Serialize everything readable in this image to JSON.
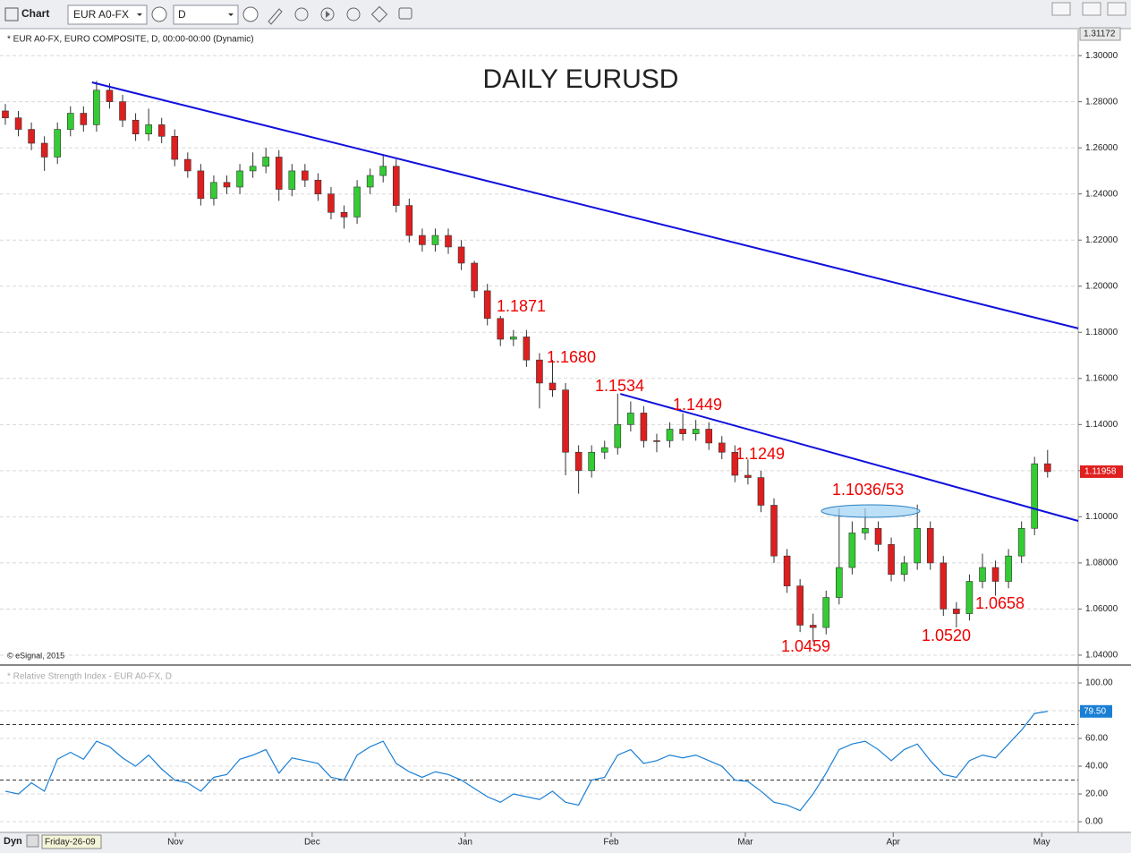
{
  "toolbar": {
    "app_label": "Chart",
    "symbol": "EUR A0-FX",
    "interval": "D"
  },
  "footer": {
    "mode": "Dyn",
    "cursor_date": "Friday-26-09"
  },
  "chart_data": [
    {
      "type": "candlestick",
      "title": "DAILY EURUSD",
      "subtitle": "* EUR A0-FX, EURO COMPOSITE, D, 00:00-00:00 (Dynamic)",
      "copyright": "© eSignal, 2015",
      "axis_top_label": "1.31172",
      "annotations": [
        "1.1871",
        "1.1680",
        "1.1534",
        "1.1449",
        "1.1249",
        "1.1036/53",
        "1.0459",
        "1.0520",
        "1.0658"
      ],
      "annotation_color": "#ee0000",
      "up_color": "#33cc33",
      "down_color": "#dd1f1f",
      "last_price_color": "#e02020",
      "x": [
        0,
        2,
        4,
        6,
        8,
        10,
        12,
        14,
        16,
        18,
        20,
        22,
        24,
        26,
        28,
        30,
        32,
        34,
        36,
        38,
        40,
        42,
        44,
        46,
        48,
        50,
        52,
        54,
        56,
        58,
        60,
        62,
        64,
        66,
        68,
        70,
        72,
        74,
        76,
        78,
        80,
        82,
        84,
        86,
        88,
        90,
        92,
        94,
        96,
        98,
        100,
        102,
        104,
        106,
        108,
        110,
        112,
        114,
        116,
        118,
        120,
        122,
        124,
        126,
        128,
        130,
        132,
        134,
        136,
        138,
        140,
        142,
        144,
        146,
        148,
        150,
        152,
        154,
        156,
        158,
        160
      ],
      "open": [
        1.276,
        1.273,
        1.268,
        1.262,
        1.256,
        1.268,
        1.275,
        1.27,
        1.285,
        1.28,
        1.272,
        1.266,
        1.27,
        1.265,
        1.255,
        1.25,
        1.238,
        1.245,
        1.243,
        1.25,
        1.252,
        1.256,
        1.242,
        1.25,
        1.246,
        1.24,
        1.232,
        1.23,
        1.243,
        1.248,
        1.252,
        1.235,
        1.222,
        1.218,
        1.222,
        1.217,
        1.21,
        1.198,
        1.186,
        1.177,
        1.178,
        1.168,
        1.158,
        1.155,
        1.128,
        1.12,
        1.128,
        1.13,
        1.14,
        1.145,
        1.133,
        1.133,
        1.138,
        1.136,
        1.138,
        1.132,
        1.128,
        1.118,
        1.117,
        1.105,
        1.083,
        1.07,
        1.053,
        1.052,
        1.065,
        1.078,
        1.093,
        1.095,
        1.088,
        1.075,
        1.08,
        1.095,
        1.08,
        1.06,
        1.058,
        1.072,
        1.078,
        1.072,
        1.083,
        1.095,
        1.123
      ],
      "high": [
        1.279,
        1.276,
        1.271,
        1.265,
        1.271,
        1.278,
        1.278,
        1.289,
        1.288,
        1.283,
        1.275,
        1.277,
        1.273,
        1.268,
        1.258,
        1.253,
        1.248,
        1.248,
        1.253,
        1.258,
        1.26,
        1.259,
        1.253,
        1.253,
        1.249,
        1.243,
        1.235,
        1.246,
        1.251,
        1.257,
        1.255,
        1.238,
        1.225,
        1.225,
        1.225,
        1.22,
        1.211,
        1.201,
        1.1871,
        1.181,
        1.181,
        1.171,
        1.168,
        1.158,
        1.131,
        1.131,
        1.133,
        1.1534,
        1.15,
        1.148,
        1.136,
        1.141,
        1.1449,
        1.142,
        1.141,
        1.135,
        1.131,
        1.1249,
        1.12,
        1.108,
        1.086,
        1.073,
        1.058,
        1.068,
        1.1036,
        1.098,
        1.1036,
        1.098,
        1.091,
        1.083,
        1.1053,
        1.098,
        1.083,
        1.063,
        1.075,
        1.084,
        1.081,
        1.086,
        1.098,
        1.126,
        1.129
      ],
      "low": [
        1.27,
        1.265,
        1.259,
        1.25,
        1.253,
        1.265,
        1.267,
        1.267,
        1.277,
        1.269,
        1.263,
        1.263,
        1.262,
        1.252,
        1.247,
        1.235,
        1.235,
        1.24,
        1.24,
        1.247,
        1.249,
        1.237,
        1.239,
        1.243,
        1.237,
        1.229,
        1.225,
        1.227,
        1.24,
        1.245,
        1.232,
        1.219,
        1.215,
        1.215,
        1.214,
        1.207,
        1.195,
        1.183,
        1.174,
        1.174,
        1.165,
        1.147,
        1.152,
        1.118,
        1.11,
        1.117,
        1.125,
        1.127,
        1.137,
        1.13,
        1.128,
        1.13,
        1.133,
        1.133,
        1.129,
        1.125,
        1.115,
        1.114,
        1.102,
        1.08,
        1.067,
        1.05,
        1.0459,
        1.049,
        1.062,
        1.075,
        1.09,
        1.085,
        1.072,
        1.072,
        1.077,
        1.077,
        1.057,
        1.052,
        1.055,
        1.069,
        1.0658,
        1.069,
        1.08,
        1.092,
        1.117
      ],
      "close": [
        1.273,
        1.268,
        1.262,
        1.256,
        1.268,
        1.275,
        1.27,
        1.285,
        1.28,
        1.272,
        1.266,
        1.27,
        1.265,
        1.255,
        1.25,
        1.238,
        1.245,
        1.243,
        1.25,
        1.252,
        1.256,
        1.242,
        1.25,
        1.246,
        1.24,
        1.232,
        1.23,
        1.243,
        1.248,
        1.252,
        1.235,
        1.222,
        1.218,
        1.222,
        1.217,
        1.21,
        1.198,
        1.186,
        1.177,
        1.178,
        1.168,
        1.158,
        1.155,
        1.128,
        1.12,
        1.128,
        1.13,
        1.14,
        1.145,
        1.133,
        1.133,
        1.138,
        1.136,
        1.138,
        1.132,
        1.128,
        1.118,
        1.117,
        1.105,
        1.083,
        1.07,
        1.053,
        1.052,
        1.065,
        1.078,
        1.093,
        1.095,
        1.088,
        1.075,
        1.08,
        1.095,
        1.08,
        1.06,
        1.058,
        1.072,
        1.078,
        1.072,
        1.083,
        1.095,
        1.123,
        1.11958
      ],
      "trendlines": [
        {
          "x": [
            13.3,
            164.7
          ],
          "y": [
            1.2884,
            1.1817
          ],
          "color": "#1010dd"
        },
        {
          "x": [
            94.4,
            164.7
          ],
          "y": [
            1.1533,
            1.0982
          ],
          "color": "#1010dd"
        }
      ],
      "xlim": [
        -0.82,
        164.7
      ],
      "ylim": [
        1.0361,
        1.3113
      ],
      "yticks": [
        {
          "value": 1.04,
          "label": "1.04000"
        },
        {
          "value": 1.06,
          "label": "1.06000"
        },
        {
          "value": 1.08,
          "label": "1.08000"
        },
        {
          "value": 1.1,
          "label": "1.10000"
        },
        {
          "value": 1.12,
          "label": "1.12000"
        },
        {
          "value": 1.14,
          "label": "1.14000"
        },
        {
          "value": 1.16,
          "label": "1.16000"
        },
        {
          "value": 1.18,
          "label": "1.18000"
        },
        {
          "value": 1.2,
          "label": "1.20000"
        },
        {
          "value": 1.22,
          "label": "1.22000"
        },
        {
          "value": 1.24,
          "label": "1.24000"
        },
        {
          "value": 1.26,
          "label": "1.26000"
        },
        {
          "value": 1.28,
          "label": "1.28000"
        },
        {
          "value": 1.3,
          "label": "1.30000"
        }
      ],
      "grid": true
    },
    {
      "type": "line",
      "title": "* Relative Strength Index - EUR A0-FX, D",
      "color": "#1a7fd4",
      "x": [
        0,
        2,
        4,
        6,
        8,
        10,
        12,
        14,
        16,
        18,
        20,
        22,
        24,
        26,
        28,
        30,
        32,
        34,
        36,
        38,
        40,
        42,
        44,
        46,
        48,
        50,
        52,
        54,
        56,
        58,
        60,
        62,
        64,
        66,
        68,
        70,
        72,
        74,
        76,
        78,
        80,
        82,
        84,
        86,
        88,
        90,
        92,
        94,
        96,
        98,
        100,
        102,
        104,
        106,
        108,
        110,
        112,
        114,
        116,
        118,
        120,
        122,
        124,
        126,
        128,
        130,
        132,
        134,
        136,
        138,
        140,
        142,
        144,
        146,
        148,
        150,
        152,
        154,
        156,
        158,
        160
      ],
      "values": [
        22,
        20,
        28,
        22,
        45,
        50,
        45,
        58,
        54,
        46,
        40,
        48,
        38,
        30,
        28,
        22,
        32,
        34,
        45,
        48,
        52,
        35,
        46,
        44,
        42,
        32,
        30,
        48,
        54,
        58,
        42,
        36,
        32,
        36,
        34,
        30,
        24,
        18,
        14,
        20,
        18,
        16,
        22,
        14,
        12,
        30,
        32,
        48,
        52,
        42,
        44,
        48,
        46,
        48,
        44,
        40,
        30,
        29,
        22,
        14,
        12,
        8,
        20,
        35,
        52,
        56,
        58,
        52,
        44,
        52,
        56,
        44,
        34,
        32,
        44,
        48,
        46,
        56,
        66,
        78,
        79.5
      ],
      "current": {
        "value": 79.5,
        "label": "79.50"
      },
      "current_color": "#1a7fd4",
      "levels": [
        70,
        30
      ],
      "xlim": [
        -0.82,
        164.7
      ],
      "ylim": [
        -7.7,
        111.6
      ],
      "yticks": [
        {
          "value": 0,
          "label": "0.00"
        },
        {
          "value": 20,
          "label": "20.00"
        },
        {
          "value": 40,
          "label": "40.00"
        },
        {
          "value": 60,
          "label": "60.00"
        },
        {
          "value": 80,
          "label": "80.00"
        },
        {
          "value": 100,
          "label": "100.00"
        }
      ],
      "xticks": [
        {
          "value": 26.1,
          "label": "Nov"
        },
        {
          "value": 47.1,
          "label": "Dec"
        },
        {
          "value": 70.6,
          "label": "Jan"
        },
        {
          "value": 93.0,
          "label": "Feb"
        },
        {
          "value": 113.6,
          "label": "Mar"
        },
        {
          "value": 136.3,
          "label": "Apr"
        },
        {
          "value": 159.1,
          "label": "May"
        }
      ],
      "grid": true
    }
  ]
}
